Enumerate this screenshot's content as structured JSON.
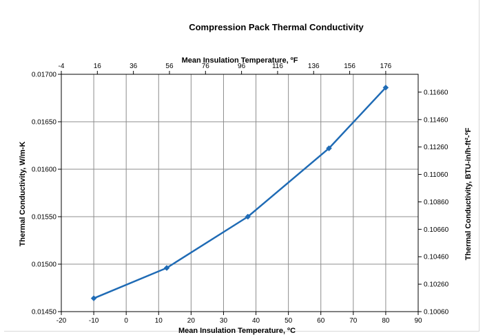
{
  "chart_data": {
    "type": "line",
    "title": "Compression Pack Thermal Conductivity",
    "xlabel": "Mean Insulation Temperature, ºC",
    "x2label": "Mean Insulation Temperature, ºF",
    "ylabel": "Thermal Conductivity, W/m-K",
    "y2label": "Thermal Conductivity, BTU-in/h-ft²-ºF",
    "xlim": [
      -20,
      90
    ],
    "ylim": [
      0.0145,
      0.017
    ],
    "x2lim": [
      -4,
      194
    ],
    "y2lim": [
      0.1006,
      0.1179
    ],
    "x_ticks": [
      "-20",
      "-10",
      "0",
      "10",
      "20",
      "30",
      "40",
      "50",
      "60",
      "70",
      "80",
      "90"
    ],
    "y_ticks": [
      "0.01450",
      "0.01500",
      "0.01550",
      "0.01600",
      "0.01650",
      "0.01700"
    ],
    "x2_ticks": [
      "-4",
      "16",
      "36",
      "56",
      "76",
      "96",
      "116",
      "136",
      "156",
      "176"
    ],
    "y2_ticks": [
      "0.10060",
      "0.10260",
      "0.10460",
      "0.10660",
      "0.10860",
      "0.11060",
      "0.11260",
      "0.11460",
      "0.11660"
    ],
    "grid": true,
    "series": [
      {
        "x": [
          -10,
          12.5,
          37.5,
          62.5,
          80
        ],
        "y": [
          0.01464,
          0.01496,
          0.0155,
          0.01622,
          0.01686
        ],
        "color": "#1f6bb5"
      }
    ]
  }
}
